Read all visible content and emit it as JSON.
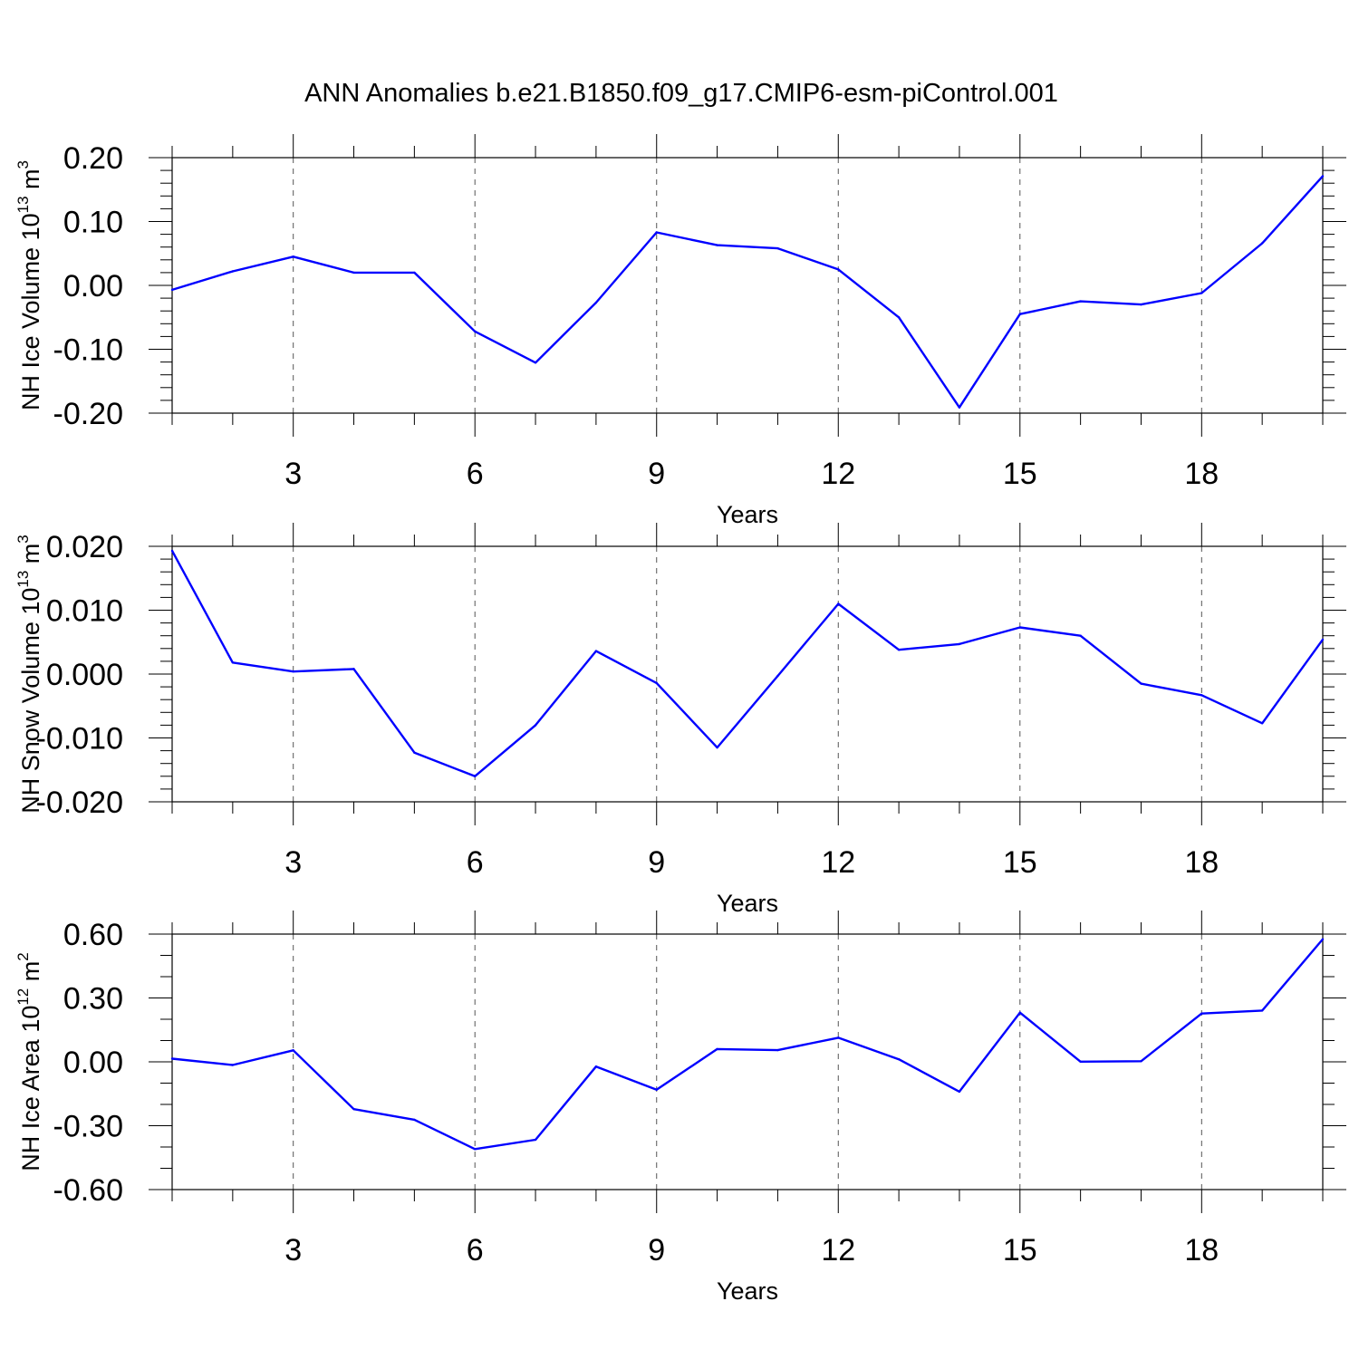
{
  "title": "ANN Anomalies b.e21.B1850.f09_g17.CMIP6-esm-piControl.001",
  "colors": {
    "line": "#0000ff",
    "axis": "#000000",
    "grid": "#555555"
  },
  "chart_data": [
    {
      "type": "line",
      "title": "",
      "xlabel": "Years",
      "ylabel": {
        "prefix": "NH Ice Volume 10",
        "exponent": "13",
        "unit": " m",
        "unit_exponent": "3"
      },
      "xlim": [
        1,
        20
      ],
      "ylim": [
        -0.2,
        0.2
      ],
      "x_ticks": [
        3,
        6,
        9,
        12,
        15,
        18
      ],
      "x_tick_labels": [
        "3",
        "6",
        "9",
        "12",
        "15",
        "18"
      ],
      "y_ticks": [
        -0.2,
        -0.1,
        0.0,
        0.1,
        0.2
      ],
      "y_tick_labels": [
        "-0.20",
        "-0.10",
        "0.00",
        "0.10",
        "0.20"
      ],
      "y_minor_step": 0.02,
      "grid": "x-dashed",
      "x": [
        1,
        2,
        3,
        4,
        5,
        6,
        7,
        8,
        9,
        10,
        11,
        12,
        13,
        14,
        15,
        16,
        17,
        18,
        19,
        20
      ],
      "values": [
        -0.007,
        0.022,
        0.045,
        0.02,
        0.02,
        -0.072,
        -0.121,
        -0.027,
        0.083,
        0.063,
        0.058,
        0.025,
        -0.05,
        -0.191,
        -0.045,
        -0.025,
        -0.03,
        -0.012,
        0.066,
        0.171
      ]
    },
    {
      "type": "line",
      "title": "",
      "xlabel": "Years",
      "ylabel": {
        "prefix": "NH Snow Volume 10",
        "exponent": "13",
        "unit": " m",
        "unit_exponent": "3"
      },
      "xlim": [
        1,
        20
      ],
      "ylim": [
        -0.02,
        0.02
      ],
      "x_ticks": [
        3,
        6,
        9,
        12,
        15,
        18
      ],
      "x_tick_labels": [
        "3",
        "6",
        "9",
        "12",
        "15",
        "18"
      ],
      "y_ticks": [
        -0.02,
        -0.01,
        0.0,
        0.01,
        0.02
      ],
      "y_tick_labels": [
        "-0.020",
        "-0.010",
        "0.000",
        "0.010",
        "0.020"
      ],
      "y_minor_step": 0.002,
      "grid": "x-dashed",
      "x": [
        1,
        2,
        3,
        4,
        5,
        6,
        7,
        8,
        9,
        10,
        11,
        12,
        13,
        14,
        15,
        16,
        17,
        18,
        19,
        20
      ],
      "values": [
        0.0193,
        0.0018,
        0.0004,
        0.0008,
        -0.0123,
        -0.016,
        -0.008,
        0.0036,
        -0.0014,
        -0.0115,
        -0.0003,
        0.011,
        0.0038,
        0.0047,
        0.0073,
        0.006,
        -0.0015,
        -0.0033,
        -0.0077,
        0.0054
      ]
    },
    {
      "type": "line",
      "title": "",
      "xlabel": "Years",
      "ylabel": {
        "prefix": "NH Ice Area 10",
        "exponent": "12",
        "unit": " m",
        "unit_exponent": "2"
      },
      "xlim": [
        1,
        20
      ],
      "ylim": [
        -0.6,
        0.6
      ],
      "x_ticks": [
        3,
        6,
        9,
        12,
        15,
        18
      ],
      "x_tick_labels": [
        "3",
        "6",
        "9",
        "12",
        "15",
        "18"
      ],
      "y_ticks": [
        -0.6,
        -0.3,
        0.0,
        0.3,
        0.6
      ],
      "y_tick_labels": [
        "-0.60",
        "-0.30",
        "0.00",
        "0.30",
        "0.60"
      ],
      "y_minor_step": 0.1,
      "grid": "x-dashed",
      "x": [
        1,
        2,
        3,
        4,
        5,
        6,
        7,
        8,
        9,
        10,
        11,
        12,
        13,
        14,
        15,
        16,
        17,
        18,
        19,
        20
      ],
      "values": [
        0.015,
        -0.015,
        0.054,
        -0.222,
        -0.272,
        -0.41,
        -0.366,
        -0.022,
        -0.131,
        0.06,
        0.055,
        0.113,
        0.012,
        -0.14,
        0.231,
        0.001,
        0.003,
        0.227,
        0.241,
        0.576
      ]
    }
  ]
}
